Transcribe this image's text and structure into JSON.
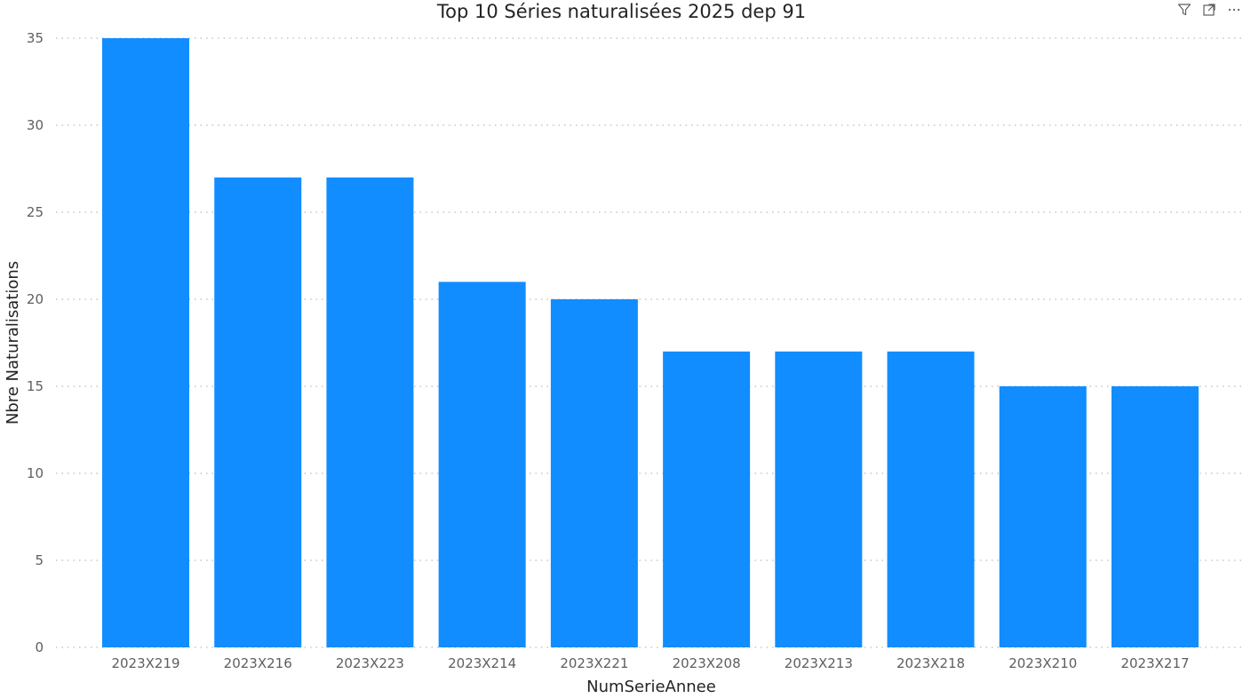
{
  "header": {
    "icons": [
      "filter-icon",
      "focus-mode-icon",
      "more-options-icon"
    ]
  },
  "chart_data": {
    "type": "bar",
    "title": "Top 10 Séries naturalisées 2025 dep 91",
    "xlabel": "NumSerieAnnee",
    "ylabel": "Nbre Naturalisations",
    "categories": [
      "2023X219",
      "2023X216",
      "2023X223",
      "2023X214",
      "2023X221",
      "2023X208",
      "2023X213",
      "2023X218",
      "2023X210",
      "2023X217"
    ],
    "values": [
      35,
      27,
      27,
      21,
      20,
      17,
      17,
      17,
      15,
      15
    ],
    "ylim": [
      0,
      35
    ],
    "yticks": [
      0,
      5,
      10,
      15,
      20,
      25,
      30,
      35
    ],
    "grid": true,
    "legend": "none",
    "bar_color": "#118DFF",
    "grid_color": "#c8c6c4"
  }
}
